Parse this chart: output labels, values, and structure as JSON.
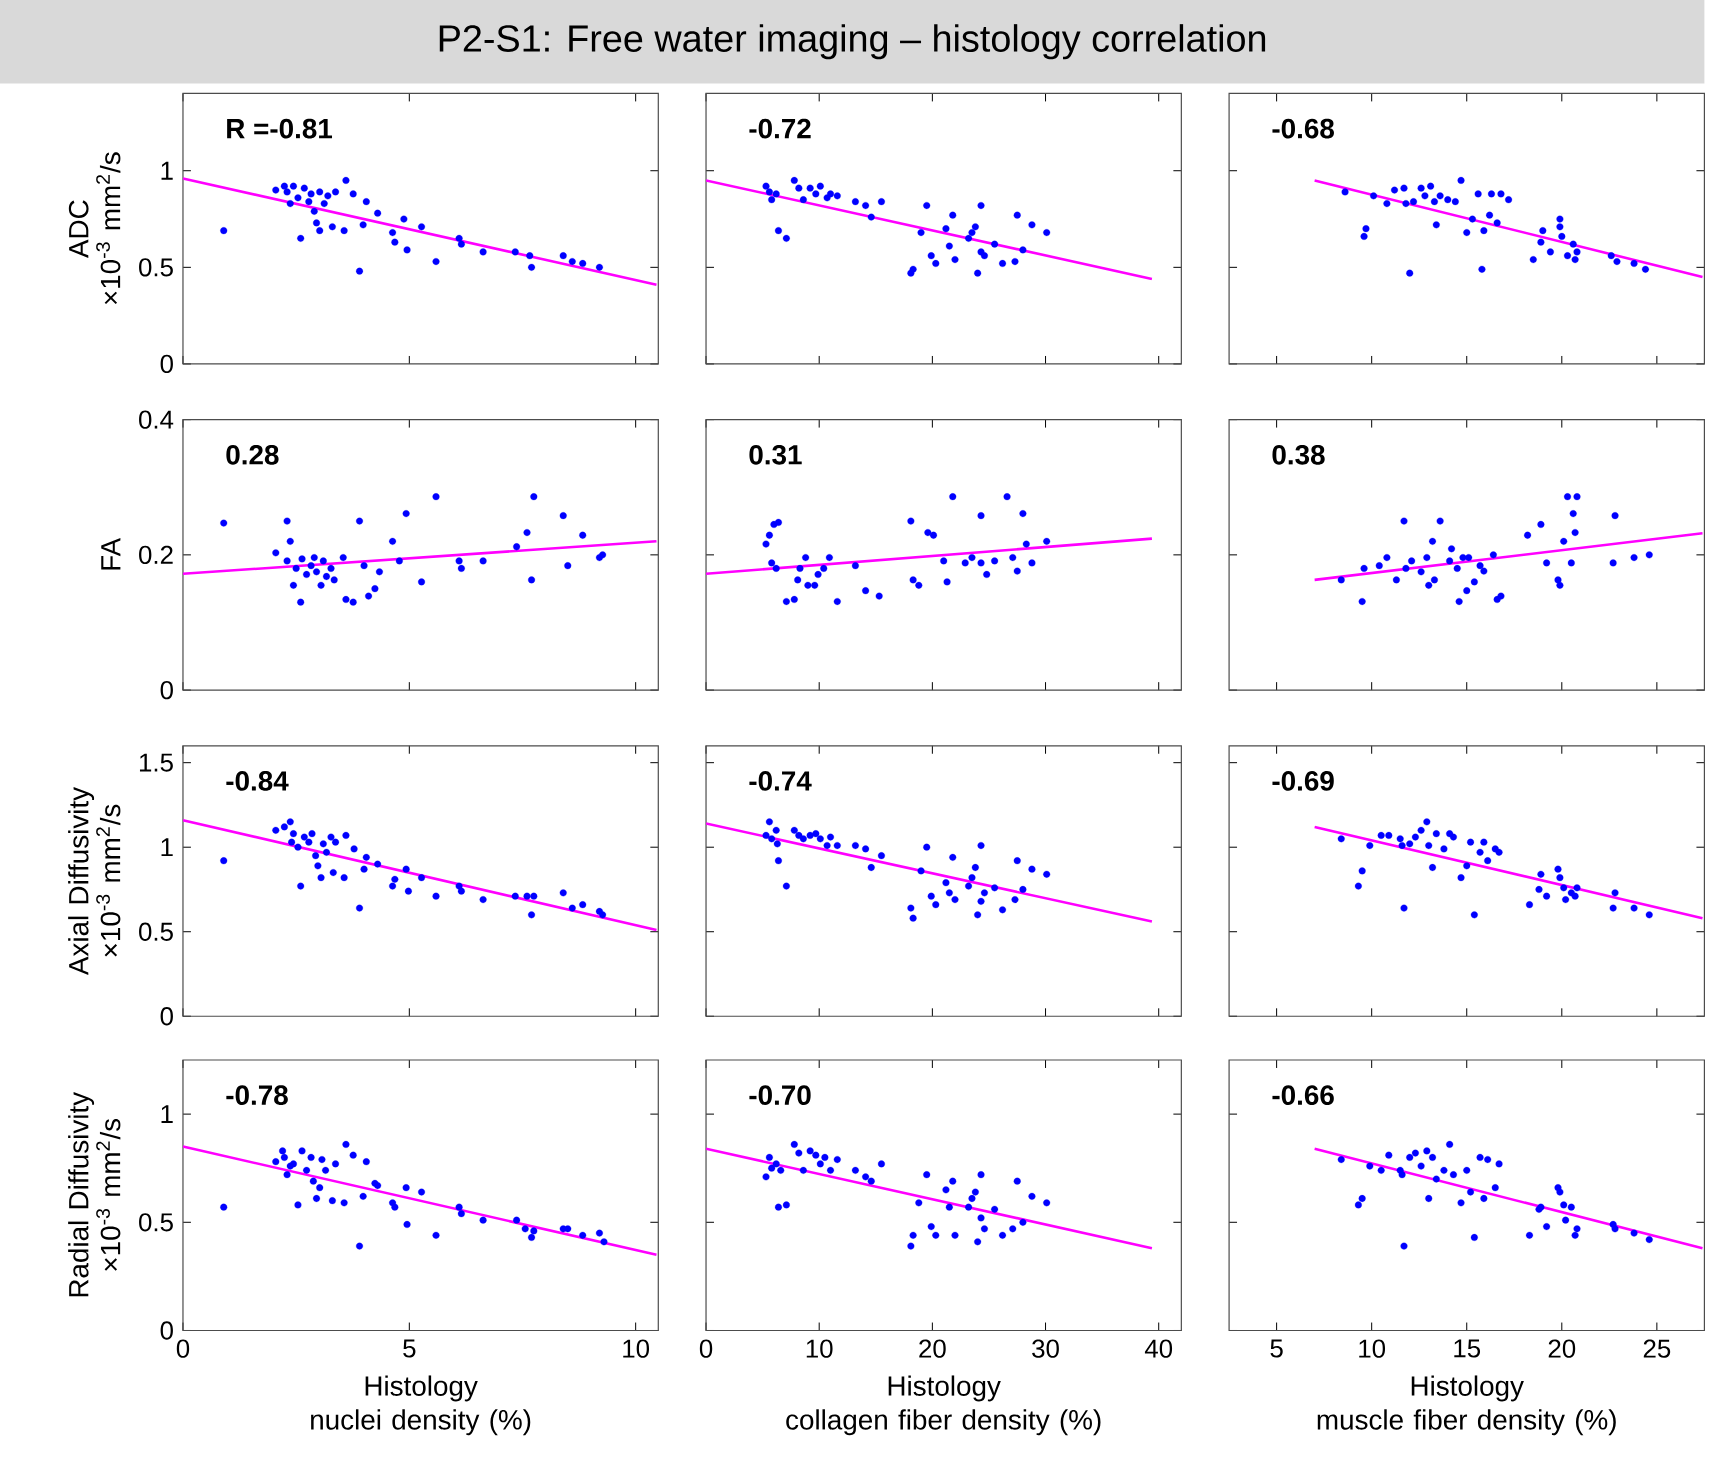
{
  "chart_data": [
    {
      "type": "scatter",
      "title": "P2-S1: Free water imaging – histology correlation",
      "ylabel": "ADC\n×10$^{-3}$ mm$^{2}$/s",
      "annotations": [
        "R =-0.81"
      ],
      "xlim": [
        0,
        10.5
      ],
      "ylim": [
        0,
        1.4
      ],
      "xticks": [
        0,
        5,
        10
      ],
      "yticks": [
        0,
        0.5,
        1
      ],
      "tick_labels": "y",
      "marker": "circle",
      "series": [
        {
          "color": "#0000ff",
          "x": [
            0.9,
            2.05,
            2.24,
            2.3,
            2.37,
            2.44,
            2.54,
            2.6,
            2.68,
            2.78,
            2.83,
            2.9,
            2.95,
            3.02,
            3.02,
            3.12,
            3.2,
            3.3,
            3.37,
            3.56,
            3.6,
            3.76,
            3.9,
            3.98,
            4.05,
            4.3,
            4.63,
            4.68,
            4.88,
            4.95,
            5.27,
            5.59,
            6.1,
            6.15,
            6.63,
            7.34,
            7.66,
            7.7,
            8.4,
            8.6,
            8.83,
            9.2
          ],
          "values": [
            0.69,
            0.9,
            0.92,
            0.89,
            0.83,
            0.92,
            0.86,
            0.65,
            0.91,
            0.84,
            0.88,
            0.79,
            0.73,
            0.69,
            0.89,
            0.83,
            0.87,
            0.71,
            0.89,
            0.69,
            0.95,
            0.88,
            0.48,
            0.72,
            0.84,
            0.78,
            0.68,
            0.63,
            0.75,
            0.59,
            0.71,
            0.53,
            0.65,
            0.62,
            0.58,
            0.58,
            0.56,
            0.5,
            0.56,
            0.53,
            0.52,
            0.5
          ]
        },
        {
          "type": "line",
          "marker": "none",
          "color": "#ff00ff",
          "x": [
            0,
            10.46
          ],
          "values": [
            0.96,
            0.41
          ]
        }
      ]
    },
    {
      "type": "scatter",
      "annotations": [
        "-0.72"
      ],
      "xlim": [
        0,
        42
      ],
      "ylim": [
        0,
        1.4
      ],
      "xticks": [
        0,
        10,
        20,
        30,
        40
      ],
      "yticks": [
        0,
        0.5,
        1
      ],
      "tick_labels": false,
      "marker": "circle",
      "series": [
        {
          "color": "#0000ff",
          "x": [
            5.3,
            5.6,
            5.8,
            6.2,
            6.4,
            7.1,
            7.8,
            8.2,
            8.6,
            9.2,
            9.7,
            10.1,
            10.7,
            11.0,
            11.6,
            13.2,
            14.1,
            14.6,
            15.5,
            18.1,
            18.3,
            19.0,
            19.5,
            19.9,
            20.3,
            21.2,
            21.5,
            21.8,
            22.0,
            23.2,
            23.5,
            23.8,
            24.0,
            24.3,
            24.3,
            24.6,
            25.5,
            26.2,
            27.3,
            27.5,
            28.0,
            28.8,
            30.1
          ],
          "values": [
            0.92,
            0.89,
            0.85,
            0.88,
            0.69,
            0.65,
            0.95,
            0.91,
            0.85,
            0.91,
            0.88,
            0.92,
            0.86,
            0.88,
            0.87,
            0.84,
            0.82,
            0.76,
            0.84,
            0.47,
            0.49,
            0.68,
            0.82,
            0.56,
            0.52,
            0.7,
            0.61,
            0.77,
            0.54,
            0.65,
            0.68,
            0.71,
            0.47,
            0.82,
            0.58,
            0.56,
            0.62,
            0.52,
            0.53,
            0.77,
            0.59,
            0.72,
            0.68
          ]
        },
        {
          "type": "line",
          "marker": "none",
          "color": "#ff00ff",
          "x": [
            0,
            39.4
          ],
          "values": [
            0.95,
            0.44
          ]
        }
      ]
    },
    {
      "type": "scatter",
      "annotations": [
        "-0.68"
      ],
      "xlim": [
        2.5,
        27.5
      ],
      "ylim": [
        0,
        1.4
      ],
      "xticks": [
        5,
        10,
        15,
        20,
        25
      ],
      "yticks": [
        0,
        0.5,
        1
      ],
      "tick_labels": false,
      "marker": "circle",
      "series": [
        {
          "color": "#0000ff",
          "x": [
            8.6,
            9.6,
            9.7,
            10.1,
            10.8,
            11.2,
            11.7,
            11.8,
            12.0,
            12.2,
            12.6,
            12.8,
            13.1,
            13.3,
            13.4,
            13.6,
            14.0,
            14.4,
            14.7,
            15.0,
            15.3,
            15.6,
            15.8,
            15.9,
            16.2,
            16.3,
            16.6,
            16.8,
            17.2,
            18.5,
            18.9,
            19.0,
            19.4,
            19.9,
            19.9,
            20.0,
            20.3,
            20.6,
            20.7,
            20.8,
            22.6,
            22.9,
            23.8,
            24.4
          ],
          "values": [
            0.89,
            0.66,
            0.7,
            0.87,
            0.83,
            0.9,
            0.91,
            0.83,
            0.47,
            0.84,
            0.91,
            0.87,
            0.92,
            0.84,
            0.72,
            0.87,
            0.85,
            0.84,
            0.95,
            0.68,
            0.75,
            0.88,
            0.49,
            0.69,
            0.77,
            0.88,
            0.73,
            0.88,
            0.85,
            0.54,
            0.63,
            0.69,
            0.58,
            0.75,
            0.71,
            0.66,
            0.56,
            0.62,
            0.54,
            0.58,
            0.56,
            0.53,
            0.52,
            0.49
          ]
        },
        {
          "type": "line",
          "marker": "none",
          "color": "#ff00ff",
          "x": [
            7.0,
            27.4
          ],
          "values": [
            0.95,
            0.45
          ]
        }
      ]
    },
    {
      "type": "scatter",
      "ylabel": "FA",
      "annotations": [
        "0.28"
      ],
      "xlim": [
        0,
        10.5
      ],
      "ylim": [
        0,
        0.4
      ],
      "xticks": [
        0,
        5,
        10
      ],
      "yticks": [
        0,
        0.2,
        0.4
      ],
      "tick_labels": "y",
      "marker": "circle",
      "series": [
        {
          "color": "#0000ff",
          "x": [
            0.9,
            2.05,
            2.3,
            2.3,
            2.37,
            2.44,
            2.5,
            2.6,
            2.63,
            2.73,
            2.83,
            2.9,
            2.95,
            3.05,
            3.1,
            3.17,
            3.27,
            3.34,
            3.54,
            3.6,
            3.76,
            3.9,
            4.0,
            4.1,
            4.24,
            4.34,
            4.63,
            4.78,
            4.93,
            5.27,
            5.59,
            6.1,
            6.15,
            6.63,
            7.37,
            7.6,
            7.7,
            7.75,
            8.4,
            8.5,
            8.83,
            9.2,
            9.27
          ],
          "values": [
            0.247,
            0.203,
            0.191,
            0.25,
            0.22,
            0.155,
            0.18,
            0.13,
            0.194,
            0.171,
            0.184,
            0.196,
            0.175,
            0.155,
            0.191,
            0.168,
            0.18,
            0.163,
            0.196,
            0.134,
            0.13,
            0.25,
            0.184,
            0.139,
            0.15,
            0.175,
            0.22,
            0.191,
            0.261,
            0.16,
            0.286,
            0.191,
            0.18,
            0.191,
            0.212,
            0.233,
            0.163,
            0.286,
            0.258,
            0.184,
            0.229,
            0.196,
            0.2
          ]
        },
        {
          "type": "line",
          "marker": "none",
          "color": "#ff00ff",
          "x": [
            0,
            10.46
          ],
          "values": [
            0.172,
            0.22
          ]
        }
      ]
    },
    {
      "type": "scatter",
      "annotations": [
        "0.31"
      ],
      "xlim": [
        0,
        42
      ],
      "ylim": [
        0,
        0.4
      ],
      "xticks": [
        0,
        10,
        20,
        30,
        40
      ],
      "yticks": [
        0,
        0.2,
        0.4
      ],
      "tick_labels": false,
      "marker": "circle",
      "series": [
        {
          "color": "#0000ff",
          "x": [
            5.3,
            5.6,
            5.8,
            6.0,
            6.4,
            6.2,
            7.1,
            7.8,
            8.1,
            8.3,
            8.8,
            9.0,
            9.6,
            9.9,
            10.4,
            10.9,
            11.6,
            13.2,
            14.1,
            15.3,
            18.1,
            18.3,
            18.8,
            19.6,
            20.1,
            21.0,
            21.3,
            21.8,
            22.9,
            23.5,
            24.3,
            24.3,
            24.8,
            25.5,
            26.6,
            27.1,
            27.5,
            28.0,
            28.3,
            28.8,
            30.1
          ],
          "values": [
            0.216,
            0.229,
            0.188,
            0.245,
            0.248,
            0.18,
            0.131,
            0.134,
            0.163,
            0.18,
            0.196,
            0.155,
            0.155,
            0.171,
            0.18,
            0.196,
            0.131,
            0.184,
            0.147,
            0.139,
            0.25,
            0.163,
            0.155,
            0.233,
            0.229,
            0.191,
            0.16,
            0.286,
            0.188,
            0.196,
            0.258,
            0.188,
            0.171,
            0.191,
            0.286,
            0.196,
            0.176,
            0.261,
            0.216,
            0.188,
            0.22
          ]
        },
        {
          "type": "line",
          "marker": "none",
          "color": "#ff00ff",
          "x": [
            0,
            39.4
          ],
          "values": [
            0.172,
            0.224
          ]
        }
      ]
    },
    {
      "type": "scatter",
      "annotations": [
        "0.38"
      ],
      "xlim": [
        2.5,
        27.5
      ],
      "ylim": [
        0,
        0.4
      ],
      "xticks": [
        5,
        10,
        15,
        20,
        25
      ],
      "yticks": [
        0,
        0.2,
        0.4
      ],
      "tick_labels": false,
      "marker": "circle",
      "series": [
        {
          "color": "#0000ff",
          "x": [
            8.4,
            9.5,
            9.6,
            10.4,
            10.8,
            11.3,
            11.7,
            11.8,
            12.1,
            12.6,
            12.9,
            13.0,
            13.2,
            13.3,
            13.6,
            14.1,
            14.2,
            14.5,
            14.6,
            14.8,
            15.0,
            15.1,
            15.4,
            15.7,
            15.9,
            16.4,
            16.6,
            16.8,
            18.2,
            18.9,
            19.2,
            19.8,
            19.9,
            20.1,
            20.3,
            20.5,
            20.6,
            20.7,
            20.8,
            22.7,
            22.8,
            23.8,
            24.6
          ],
          "values": [
            0.163,
            0.131,
            0.18,
            0.184,
            0.196,
            0.163,
            0.25,
            0.18,
            0.191,
            0.175,
            0.196,
            0.155,
            0.22,
            0.163,
            0.25,
            0.191,
            0.209,
            0.18,
            0.131,
            0.196,
            0.147,
            0.196,
            0.16,
            0.184,
            0.176,
            0.2,
            0.134,
            0.139,
            0.229,
            0.245,
            0.188,
            0.163,
            0.155,
            0.22,
            0.286,
            0.188,
            0.261,
            0.233,
            0.286,
            0.188,
            0.258,
            0.196,
            0.2
          ]
        },
        {
          "type": "line",
          "marker": "none",
          "color": "#ff00ff",
          "x": [
            7.0,
            27.4
          ],
          "values": [
            0.163,
            0.232
          ]
        }
      ]
    },
    {
      "type": "scatter",
      "ylabel": "Axial Diffusivity\n×10$^{-3}$ mm$^{2}$/s",
      "annotations": [
        "-0.84"
      ],
      "xlim": [
        0,
        10.5
      ],
      "ylim": [
        0,
        1.6
      ],
      "xticks": [
        0,
        5,
        10
      ],
      "yticks": [
        0,
        0.5,
        1,
        1.5
      ],
      "tick_labels": "y",
      "marker": "circle",
      "series": [
        {
          "color": "#0000ff",
          "x": [
            0.9,
            2.05,
            2.24,
            2.37,
            2.4,
            2.44,
            2.54,
            2.6,
            2.68,
            2.78,
            2.85,
            2.93,
            2.98,
            3.05,
            3.1,
            3.17,
            3.27,
            3.32,
            3.37,
            3.56,
            3.6,
            3.78,
            3.9,
            4.0,
            4.05,
            4.3,
            4.63,
            4.68,
            4.93,
            4.98,
            5.27,
            5.59,
            6.1,
            6.15,
            6.63,
            7.34,
            7.6,
            7.7,
            7.75,
            8.4,
            8.6,
            8.83,
            9.2,
            9.27
          ],
          "values": [
            0.92,
            1.1,
            1.12,
            1.15,
            1.03,
            1.08,
            1.0,
            0.77,
            1.06,
            1.03,
            1.08,
            0.95,
            0.89,
            0.82,
            1.02,
            0.97,
            1.06,
            0.85,
            1.03,
            0.82,
            1.07,
            0.99,
            0.64,
            0.87,
            0.94,
            0.9,
            0.77,
            0.81,
            0.87,
            0.74,
            0.82,
            0.71,
            0.77,
            0.74,
            0.69,
            0.71,
            0.71,
            0.6,
            0.71,
            0.73,
            0.64,
            0.66,
            0.62,
            0.6
          ]
        },
        {
          "type": "line",
          "marker": "none",
          "color": "#ff00ff",
          "x": [
            0,
            10.46
          ],
          "values": [
            1.16,
            0.51
          ]
        }
      ]
    },
    {
      "type": "scatter",
      "annotations": [
        "-0.74"
      ],
      "xlim": [
        0,
        42
      ],
      "ylim": [
        0,
        1.6
      ],
      "xticks": [
        0,
        10,
        20,
        30,
        40
      ],
      "yticks": [
        0,
        0.5,
        1,
        1.5
      ],
      "tick_labels": false,
      "marker": "circle",
      "series": [
        {
          "color": "#0000ff",
          "x": [
            5.3,
            5.6,
            5.8,
            6.2,
            6.4,
            6.3,
            7.1,
            7.8,
            8.2,
            8.6,
            9.2,
            9.7,
            10.1,
            10.7,
            11.0,
            11.6,
            13.2,
            14.1,
            14.6,
            15.5,
            18.1,
            18.3,
            19.0,
            19.5,
            19.9,
            20.3,
            21.2,
            21.5,
            21.8,
            22.0,
            23.2,
            23.5,
            23.8,
            24.0,
            24.3,
            24.3,
            24.6,
            25.5,
            26.2,
            27.3,
            27.5,
            28.0,
            28.8,
            30.1
          ],
          "values": [
            1.07,
            1.15,
            1.05,
            1.1,
            0.92,
            1.02,
            0.77,
            1.1,
            1.07,
            1.05,
            1.07,
            1.08,
            1.05,
            1.01,
            1.06,
            1.01,
            1.01,
            0.99,
            0.88,
            0.95,
            0.64,
            0.58,
            0.86,
            1.0,
            0.71,
            0.66,
            0.79,
            0.73,
            0.94,
            0.69,
            0.77,
            0.82,
            0.88,
            0.6,
            1.01,
            0.68,
            0.73,
            0.76,
            0.63,
            0.69,
            0.92,
            0.75,
            0.87,
            0.84
          ]
        },
        {
          "type": "line",
          "marker": "none",
          "color": "#ff00ff",
          "x": [
            0,
            39.4
          ],
          "values": [
            1.14,
            0.56
          ]
        }
      ]
    },
    {
      "type": "scatter",
      "annotations": [
        "-0.69"
      ],
      "xlim": [
        2.5,
        27.5
      ],
      "ylim": [
        0,
        1.6
      ],
      "xticks": [
        5,
        10,
        15,
        20,
        25
      ],
      "yticks": [
        0,
        0.5,
        1,
        1.5
      ],
      "tick_labels": false,
      "marker": "circle",
      "series": [
        {
          "color": "#0000ff",
          "x": [
            8.4,
            9.5,
            9.3,
            9.9,
            10.5,
            10.9,
            11.5,
            11.6,
            11.7,
            12.0,
            12.3,
            12.6,
            12.9,
            13.0,
            13.2,
            13.4,
            13.8,
            14.1,
            14.3,
            14.7,
            15.0,
            15.2,
            15.4,
            15.7,
            15.9,
            16.1,
            16.5,
            16.7,
            18.3,
            18.8,
            18.9,
            19.2,
            19.8,
            19.9,
            20.1,
            20.2,
            20.5,
            20.7,
            20.8,
            22.7,
            22.8,
            23.8,
            24.6
          ],
          "values": [
            1.05,
            0.86,
            0.77,
            1.01,
            1.07,
            1.07,
            1.05,
            1.01,
            0.64,
            1.02,
            1.06,
            1.1,
            1.15,
            1.01,
            0.88,
            1.08,
            0.99,
            1.08,
            1.06,
            0.82,
            0.89,
            1.03,
            0.6,
            0.97,
            1.03,
            0.92,
            0.99,
            0.97,
            0.66,
            0.75,
            0.84,
            0.71,
            0.87,
            0.82,
            0.76,
            0.69,
            0.73,
            0.71,
            0.76,
            0.64,
            0.73,
            0.64,
            0.6
          ]
        },
        {
          "type": "line",
          "marker": "none",
          "color": "#ff00ff",
          "x": [
            7.0,
            27.4
          ],
          "values": [
            1.12,
            0.58
          ]
        }
      ]
    },
    {
      "type": "scatter",
      "ylabel": "Radial Diffusivity\n×10$^{-3}$ mm$^{2}$/s",
      "xlabel": "Histology\nnuclei density (%)",
      "annotations": [
        "-0.78"
      ],
      "xlim": [
        0,
        10.5
      ],
      "ylim": [
        0,
        1.25
      ],
      "xticks": [
        0,
        5,
        10
      ],
      "yticks": [
        0,
        0.5,
        1
      ],
      "marker": "circle",
      "series": [
        {
          "color": "#0000ff",
          "x": [
            0.9,
            2.05,
            2.2,
            2.24,
            2.3,
            2.37,
            2.44,
            2.54,
            2.63,
            2.73,
            2.83,
            2.88,
            2.95,
            3.02,
            3.07,
            3.15,
            3.3,
            3.37,
            3.56,
            3.6,
            3.76,
            3.9,
            3.98,
            4.05,
            4.24,
            4.3,
            4.63,
            4.68,
            4.93,
            4.95,
            5.27,
            5.59,
            6.1,
            6.15,
            6.63,
            7.37,
            7.56,
            7.7,
            7.75,
            8.4,
            8.5,
            8.83,
            9.2,
            9.3
          ],
          "values": [
            0.57,
            0.78,
            0.83,
            0.8,
            0.72,
            0.76,
            0.77,
            0.58,
            0.83,
            0.74,
            0.8,
            0.69,
            0.61,
            0.66,
            0.79,
            0.74,
            0.6,
            0.77,
            0.59,
            0.86,
            0.81,
            0.39,
            0.62,
            0.78,
            0.68,
            0.67,
            0.59,
            0.57,
            0.66,
            0.49,
            0.64,
            0.44,
            0.57,
            0.54,
            0.51,
            0.51,
            0.47,
            0.43,
            0.46,
            0.47,
            0.47,
            0.44,
            0.45,
            0.41
          ]
        },
        {
          "type": "line",
          "marker": "none",
          "color": "#ff00ff",
          "x": [
            0,
            10.46
          ],
          "values": [
            0.85,
            0.35
          ]
        }
      ]
    },
    {
      "type": "scatter",
      "xlabel": "Histology\ncollagen fiber density (%)",
      "annotations": [
        "-0.70"
      ],
      "xlim": [
        0,
        42
      ],
      "ylim": [
        0,
        1.25
      ],
      "xticks": [
        0,
        10,
        20,
        30,
        40
      ],
      "yticks": [
        0,
        0.5,
        1
      ],
      "tick_labels": "x",
      "marker": "circle",
      "series": [
        {
          "color": "#0000ff",
          "x": [
            5.3,
            5.6,
            5.8,
            6.2,
            6.4,
            6.6,
            7.1,
            7.8,
            8.2,
            8.6,
            9.2,
            9.7,
            10.1,
            10.5,
            11.0,
            11.6,
            13.2,
            14.1,
            14.6,
            15.5,
            18.1,
            18.3,
            18.8,
            19.5,
            19.9,
            20.3,
            21.2,
            21.5,
            21.8,
            22.0,
            23.2,
            23.5,
            23.8,
            24.0,
            24.3,
            24.3,
            24.6,
            25.5,
            26.2,
            27.1,
            27.5,
            28.0,
            28.8,
            30.1
          ],
          "values": [
            0.71,
            0.8,
            0.75,
            0.77,
            0.57,
            0.74,
            0.58,
            0.86,
            0.82,
            0.74,
            0.83,
            0.81,
            0.77,
            0.8,
            0.74,
            0.79,
            0.74,
            0.71,
            0.69,
            0.77,
            0.39,
            0.44,
            0.59,
            0.72,
            0.48,
            0.44,
            0.65,
            0.57,
            0.69,
            0.44,
            0.57,
            0.61,
            0.64,
            0.41,
            0.72,
            0.52,
            0.47,
            0.56,
            0.44,
            0.47,
            0.69,
            0.5,
            0.62,
            0.59
          ]
        },
        {
          "type": "line",
          "marker": "none",
          "color": "#ff00ff",
          "x": [
            0,
            39.4
          ],
          "values": [
            0.84,
            0.38
          ]
        }
      ]
    },
    {
      "type": "scatter",
      "xlabel": "Histology\nmuscle fiber density (%)",
      "annotations": [
        "-0.66"
      ],
      "xlim": [
        2.5,
        27.5
      ],
      "ylim": [
        0,
        1.25
      ],
      "xticks": [
        5,
        10,
        15,
        20,
        25
      ],
      "yticks": [
        0,
        0.5,
        1
      ],
      "tick_labels": "x",
      "marker": "circle",
      "series": [
        {
          "color": "#0000ff",
          "x": [
            8.4,
            9.5,
            9.3,
            9.9,
            10.5,
            10.9,
            11.5,
            11.6,
            11.7,
            12.0,
            12.3,
            12.6,
            12.9,
            13.0,
            13.2,
            13.4,
            13.8,
            14.1,
            14.3,
            14.7,
            15.0,
            15.2,
            15.4,
            15.7,
            15.9,
            16.1,
            16.5,
            16.7,
            18.3,
            18.8,
            18.9,
            19.2,
            19.8,
            19.9,
            20.1,
            20.2,
            20.5,
            20.7,
            20.8,
            22.7,
            22.8,
            23.8,
            24.6
          ],
          "values": [
            0.79,
            0.61,
            0.58,
            0.76,
            0.74,
            0.81,
            0.74,
            0.72,
            0.39,
            0.8,
            0.82,
            0.76,
            0.83,
            0.61,
            0.8,
            0.7,
            0.74,
            0.86,
            0.72,
            0.59,
            0.74,
            0.64,
            0.43,
            0.8,
            0.61,
            0.79,
            0.66,
            0.77,
            0.44,
            0.56,
            0.57,
            0.48,
            0.66,
            0.64,
            0.58,
            0.51,
            0.57,
            0.44,
            0.47,
            0.49,
            0.47,
            0.45,
            0.42
          ]
        },
        {
          "type": "line",
          "marker": "none",
          "color": "#ff00ff",
          "x": [
            7.0,
            27.4
          ],
          "values": [
            0.84,
            0.38
          ]
        }
      ]
    }
  ]
}
